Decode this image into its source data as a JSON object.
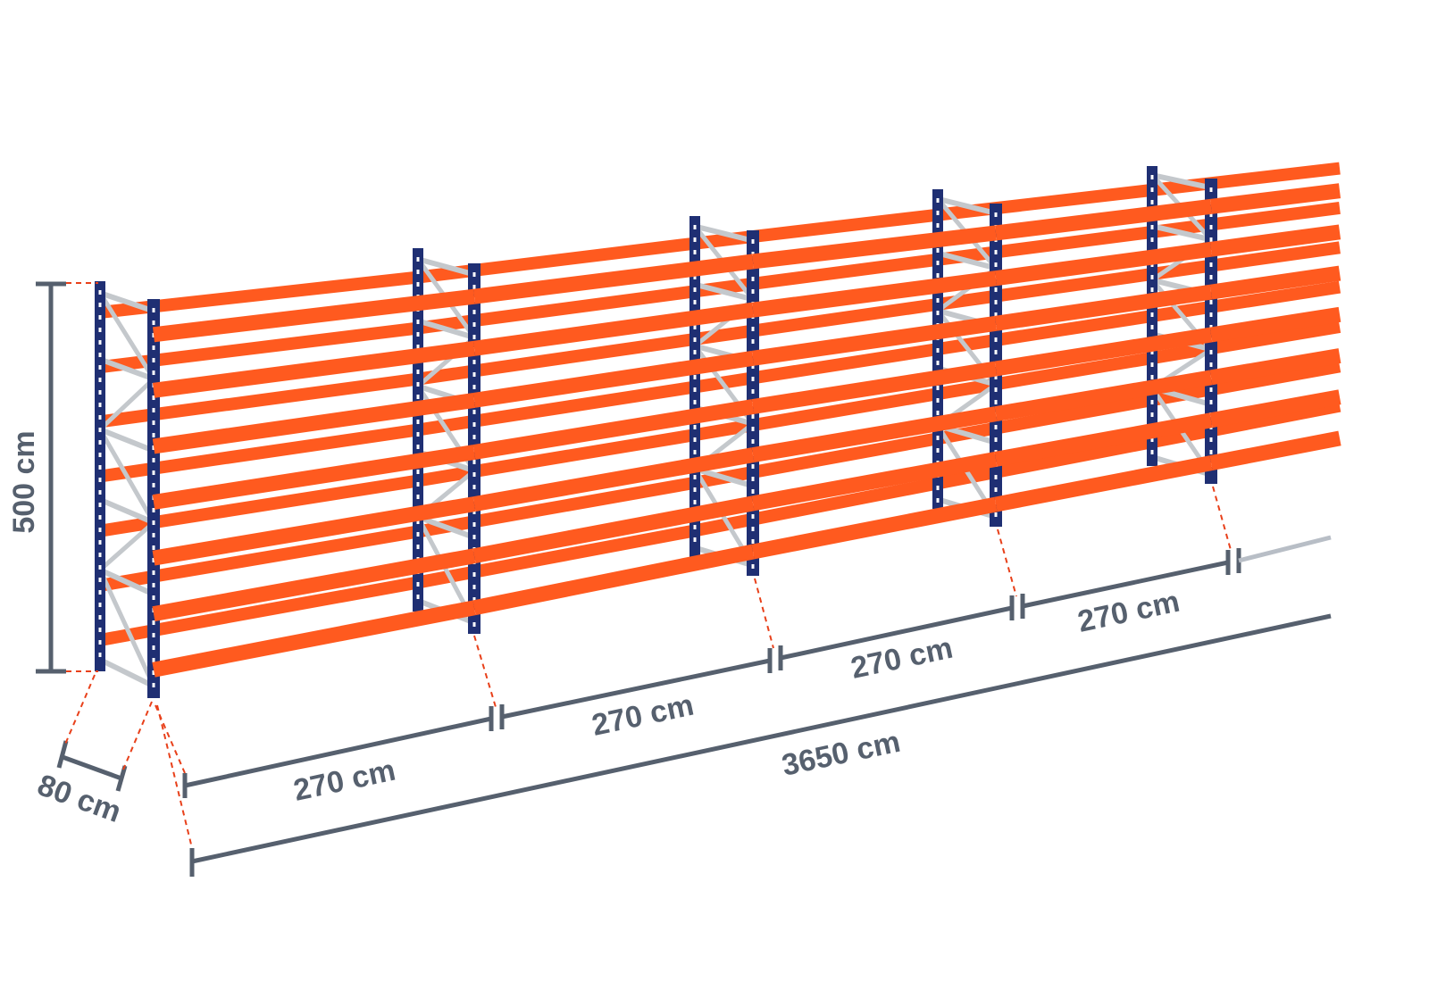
{
  "dimensions": {
    "height": "500 cm",
    "depth": "80 cm",
    "bay_widths": [
      "270 cm",
      "270 cm",
      "270 cm",
      "270 cm"
    ],
    "total_length": "3650 cm"
  },
  "colors": {
    "upright": "#1f2f73",
    "beam": "#ff5a1f",
    "bracing": "#c4c8cc",
    "dimension_line": "#56606e",
    "guide_line": "#e8401a"
  }
}
